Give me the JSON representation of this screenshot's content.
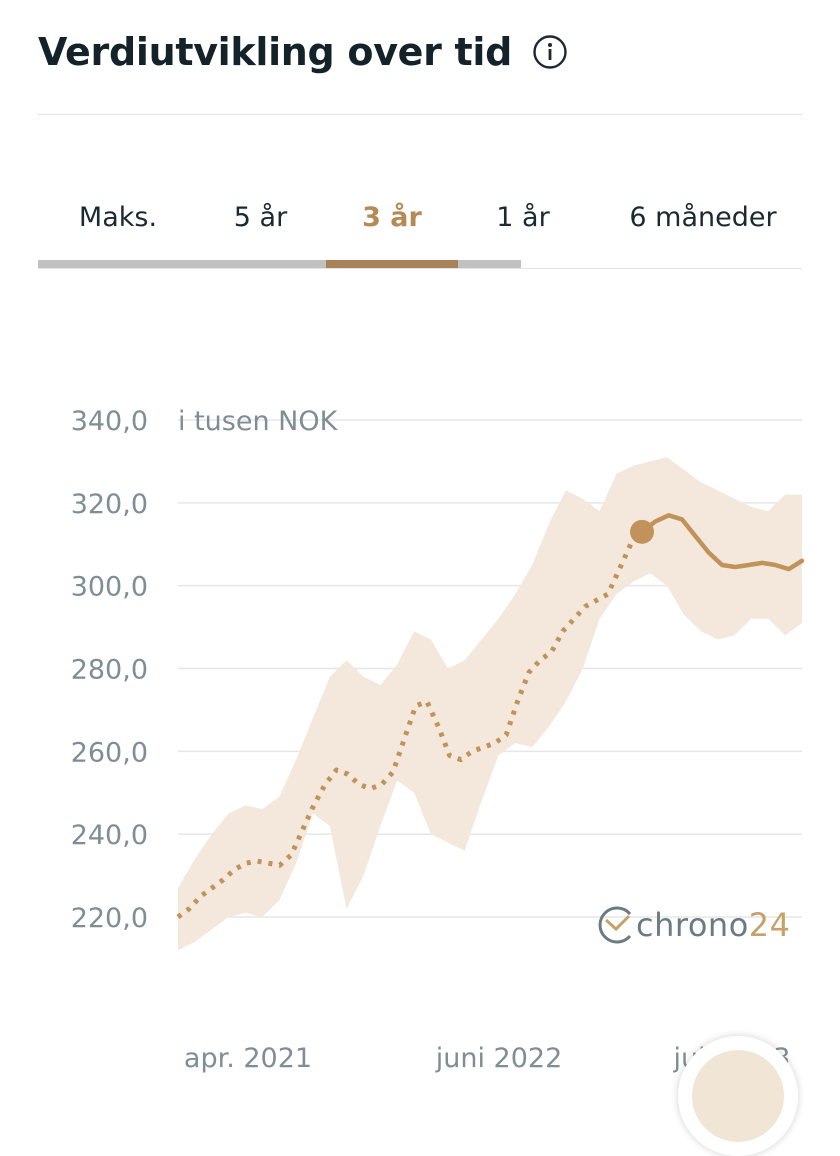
{
  "header": {
    "title": "Verdiutvikling over tid",
    "info_icon": "info-circle-icon"
  },
  "tabs": [
    {
      "label": "Maks.",
      "active": false
    },
    {
      "label": "5 år",
      "active": false
    },
    {
      "label": "3 år",
      "active": true
    },
    {
      "label": "1 år",
      "active": false
    },
    {
      "label": "6 måneder",
      "active": false
    }
  ],
  "colors": {
    "accent": "#c1935b",
    "band": "#f3e8db",
    "grid": "#e6e6e6",
    "axis_text": "#7f8e95",
    "indicator": "#a8835a"
  },
  "logo": {
    "name": "chrono",
    "accent": "24",
    "icon": "chrono24-clock-icon"
  },
  "chart_data": {
    "type": "line",
    "unit_label": "i tusen NOK",
    "y_ticks": [
      "340,0",
      "320,0",
      "300,0",
      "280,0",
      "260,0",
      "240,0",
      "220,0"
    ],
    "ylim": [
      220,
      340
    ],
    "x_ticks": [
      "apr. 2021",
      "juni 2022",
      "juli 2023"
    ],
    "grid": true,
    "series": [
      {
        "style": "dotted",
        "values": [
          220,
          222,
          225,
          227,
          229,
          231.5,
          233,
          233.5,
          233,
          232.5,
          235,
          241,
          247,
          252,
          255.5,
          254.5,
          252,
          251,
          252,
          255,
          263,
          271,
          272,
          266,
          259,
          258,
          260,
          261,
          262,
          264,
          272,
          279,
          282,
          284,
          289,
          292,
          295,
          296.5,
          298,
          304,
          310,
          313
        ]
      },
      {
        "style": "solid",
        "values": [
          313,
          315.5,
          317,
          316,
          312,
          308,
          305,
          304.5,
          305,
          305.5,
          305,
          304,
          306
        ]
      }
    ],
    "band": {
      "upper": [
        227,
        234,
        240,
        245,
        247,
        246,
        249,
        258,
        268,
        278,
        282,
        278,
        276,
        281,
        289,
        287,
        280,
        282,
        287,
        292,
        298,
        305,
        315,
        323,
        321,
        318,
        327,
        329,
        330,
        331,
        328,
        325,
        323,
        321,
        319,
        318,
        322,
        322
      ],
      "lower": [
        212,
        214,
        217,
        220,
        221,
        220,
        224,
        233,
        245,
        242,
        222,
        230,
        242,
        253,
        250,
        240,
        238,
        236,
        248,
        259,
        262,
        261,
        266,
        272,
        280,
        292,
        298,
        301,
        303,
        300,
        293,
        289,
        287,
        288,
        292,
        292,
        288,
        291
      ]
    }
  }
}
